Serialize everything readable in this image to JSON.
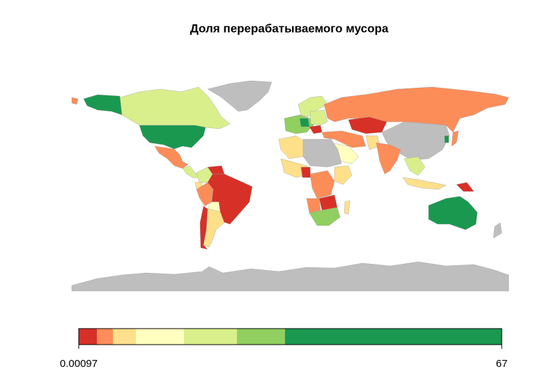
{
  "title": "Доля перерабатываемого мусора",
  "legend": {
    "min": 0.00097,
    "max": 67,
    "colors": [
      "#d73027",
      "#fc8d59",
      "#fee08b",
      "#ffffbf",
      "#d9ef8b",
      "#91cf60",
      "#1a9850"
    ]
  }
}
